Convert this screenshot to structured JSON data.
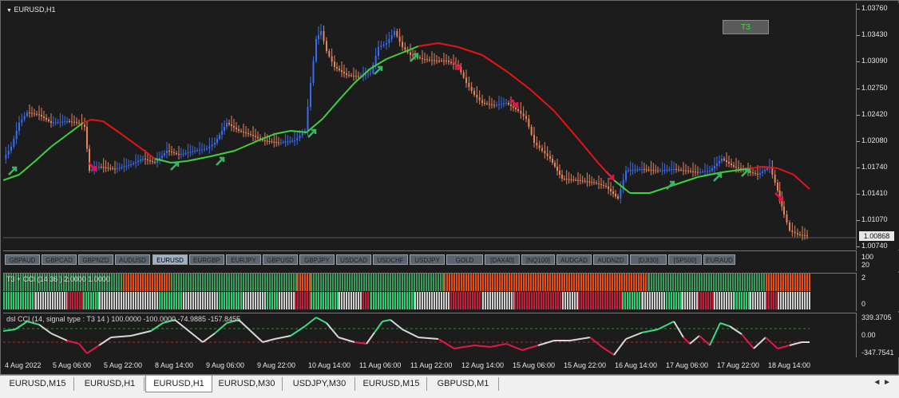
{
  "chart": {
    "title": "EURUSD,H1",
    "t3_button": "T3",
    "current_price": "1.00868",
    "price_scale": [
      "1.03760",
      "1.03430",
      "1.03090",
      "1.02750",
      "1.02420",
      "1.02080",
      "1.01740",
      "1.01410",
      "1.01070",
      "1.00740"
    ],
    "time_labels": [
      "4 Aug 2022",
      "5 Aug 06:00",
      "5 Aug 22:00",
      "8 Aug 14:00",
      "9 Aug 06:00",
      "9 Aug 22:00",
      "10 Aug 14:00",
      "11 Aug 06:00",
      "11 Aug 22:00",
      "12 Aug 14:00",
      "15 Aug 06:00",
      "15 Aug 22:00",
      "16 Aug 14:00",
      "17 Aug 06:00",
      "17 Aug 22:00",
      "18 Aug 14:00"
    ],
    "colors": {
      "up_candle": "#3a6cf0",
      "down_candle": "#e8845a",
      "t3_up": "#3cd23c",
      "t3_down": "#e61414",
      "arrow_up": "#3cb464",
      "arrow_down": "#e6144a"
    }
  },
  "symbols": {
    "buttons": [
      "GBPAUD",
      "GBPCAD",
      "GBPNZD",
      "AUDUSD",
      "EURUSD",
      "EURGBP",
      "EURJPY",
      "GBPUSD",
      "GBPJPY",
      "USDCAD",
      "USDCHF",
      "USDJPY",
      "GOLD",
      "[DAX40]",
      "[NQ100]",
      "AUDCAD",
      "AUDNZD",
      "[DJI30]",
      "[SP500]",
      "EURAUD"
    ],
    "active": "EURUSD",
    "scale": [
      "100",
      "20"
    ]
  },
  "histogram": {
    "label": "T3 + CCI  (14    36 ) 2.0000 1.0000",
    "scale": [
      "2",
      "0"
    ]
  },
  "cci": {
    "label": "dsl CCI  (14, signal type : T3  14 ) 100.0000 -100.0000 -74.9885 -157.8455",
    "scale": [
      "339.3705",
      "0.00",
      "-347.7541"
    ]
  },
  "tabs": [
    "EURUSD,M15",
    "EURUSD,H1",
    "EURUSD,H1",
    "EURUSD,M30",
    "USDJPY,M30",
    "EURUSD,M15",
    "GBPUSD,M1"
  ],
  "active_tab": 2
}
